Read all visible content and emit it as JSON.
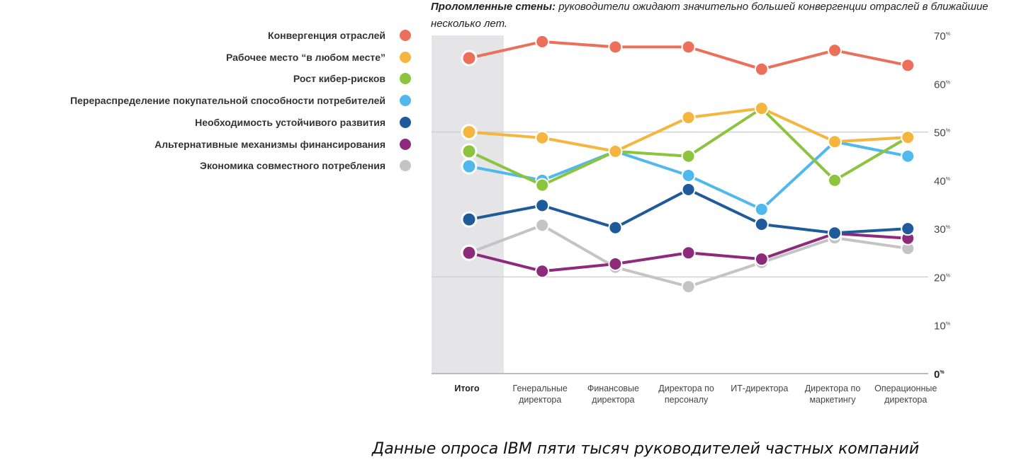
{
  "title_bold": "Проломленные стены:",
  "title_rest": " руководители ожидают значительно большей конвергенции отраслей в ближайшие несколько лет.",
  "caption": "Данные опроса IBM пяти тысяч руководителей частных компаний",
  "chart_data": {
    "type": "line",
    "title": "Проломленные стены: руководители ожидают значительно большей конвергенции отраслей в ближайшие несколько лет.",
    "categories": [
      "Итого",
      "Генеральные директора",
      "Финансовые директора",
      "Директора по персоналу",
      "ИТ-директора",
      "Директора по маркетингу",
      "Операционные директора"
    ],
    "category_lines": [
      [
        "Итого"
      ],
      [
        "Генеральные",
        "директора"
      ],
      [
        "Финансовые",
        "директора"
      ],
      [
        "Директора по",
        "персоналу"
      ],
      [
        "ИТ-директора"
      ],
      [
        "Директора по",
        "маркетингу"
      ],
      [
        "Операционные",
        "директора"
      ]
    ],
    "ylim": [
      0,
      70
    ],
    "yticks": [
      0,
      10,
      20,
      30,
      40,
      50,
      60,
      70
    ],
    "ytick_suffix": "%",
    "gridlines": [
      20,
      50
    ],
    "highlighted_category": "Итого",
    "legend_position": "left",
    "series": [
      {
        "name": "Конвергенция отраслей",
        "color": "#ec6f59",
        "values": [
          65.3,
          68.7,
          67.6,
          67.6,
          63,
          66.9,
          63.8
        ]
      },
      {
        "name": "Рабочее место “в любом месте”",
        "color": "#f4b63f",
        "values": [
          50,
          48.8,
          46,
          53,
          54.9,
          48,
          48.9
        ]
      },
      {
        "name": "Рост кибер-рисков",
        "color": "#8cc43f",
        "values": [
          46,
          39,
          46,
          45,
          54.9,
          40,
          48.9
        ]
      },
      {
        "name": "Перераспределение покупательной способности потребителей",
        "color": "#4fb9ee",
        "values": [
          42.9,
          40,
          46,
          41,
          34,
          48,
          45
        ]
      },
      {
        "name": "Необходимость устойчивого развития",
        "color": "#1f5a9a",
        "values": [
          31.9,
          34.8,
          30.2,
          38.1,
          30.9,
          29.1,
          30
        ]
      },
      {
        "name": "Альтернативные механизмы финансирования",
        "color": "#8e2a7c",
        "values": [
          25,
          21.2,
          22.7,
          25,
          23.7,
          29,
          28
        ]
      },
      {
        "name": "Экономика совместного потребления",
        "color": "#c4c4c4",
        "values": [
          25,
          30.7,
          22,
          18,
          23,
          28.1,
          25.9
        ]
      }
    ]
  }
}
